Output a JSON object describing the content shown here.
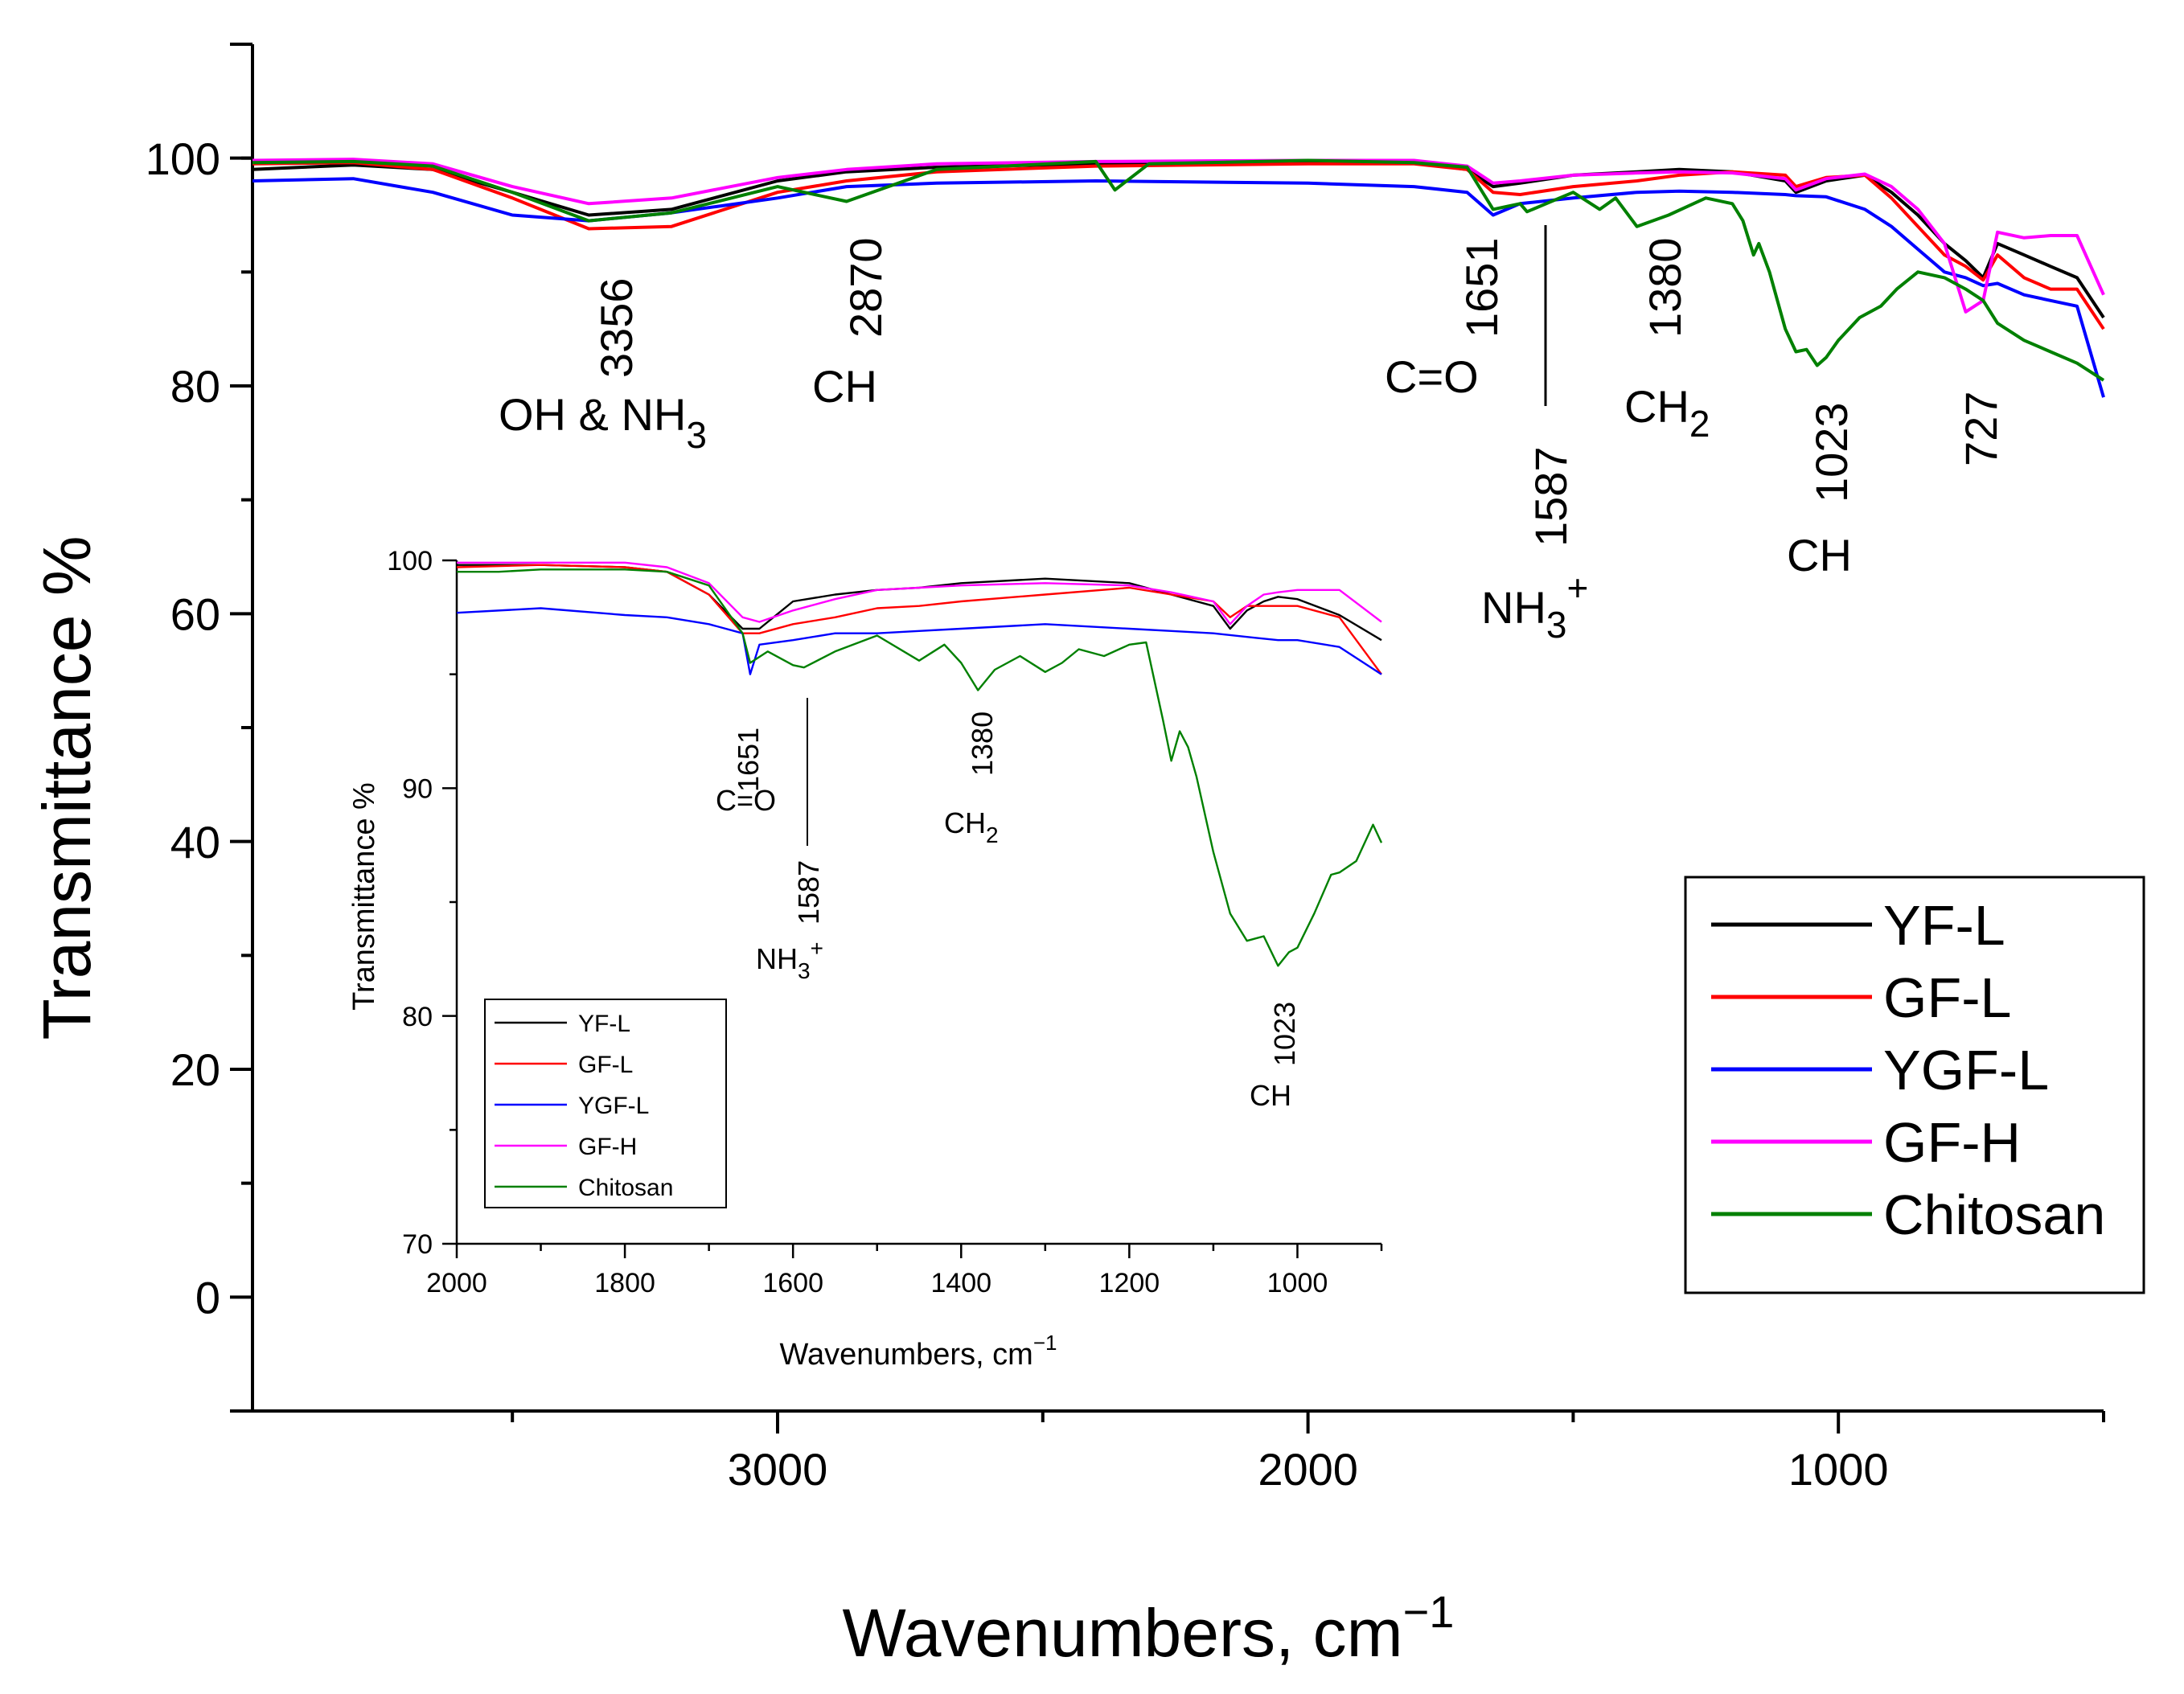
{
  "chart_data": [
    {
      "type": "line",
      "title": "",
      "xlabel": "Wavenumbers, cm",
      "xlabel_sup": "−1",
      "ylabel": "Transmittance %",
      "xlim": [
        3990,
        500
      ],
      "ylim": [
        -10,
        110
      ],
      "xticks": [
        3000,
        2000,
        1000
      ],
      "xtick_labels": [
        "3000",
        "2000",
        "1000"
      ],
      "yticks": [
        0,
        20,
        40,
        60,
        80,
        100
      ],
      "ytick_labels": [
        "0",
        "20",
        "40",
        "60",
        "80",
        "100"
      ],
      "legend": {
        "position": "bottom-right",
        "entries": [
          "YF-L",
          "GF-L",
          "YGF-L",
          "GF-H",
          "Chitosan"
        ]
      },
      "series": [
        {
          "name": "YF-L",
          "color": "#000000",
          "x": [
            3990,
            3800,
            3650,
            3500,
            3356,
            3200,
            3000,
            2870,
            2700,
            2400,
            2000,
            1800,
            1700,
            1651,
            1600,
            1500,
            1380,
            1300,
            1200,
            1100,
            1080,
            1023,
            950,
            900,
            850,
            800,
            760,
            727,
            700,
            650,
            600,
            550,
            500
          ],
          "y": [
            99,
            99.4,
            99,
            97,
            95,
            95.5,
            98,
            98.8,
            99.2,
            99.5,
            99.7,
            99.6,
            99,
            97.5,
            97.8,
            98.5,
            98.8,
            99,
            98.8,
            98,
            97,
            98,
            98.5,
            97,
            95,
            92.5,
            91,
            89.5,
            92.5,
            91.5,
            90.5,
            89.5,
            86
          ]
        },
        {
          "name": "GF-L",
          "color": "#ff0000",
          "x": [
            3990,
            3800,
            3650,
            3500,
            3356,
            3200,
            3000,
            2870,
            2700,
            2400,
            2000,
            1800,
            1700,
            1651,
            1600,
            1500,
            1380,
            1300,
            1200,
            1100,
            1080,
            1023,
            950,
            900,
            850,
            800,
            760,
            727,
            700,
            650,
            600,
            550,
            500
          ],
          "y": [
            99.5,
            99.6,
            99,
            96.5,
            93.8,
            94,
            97,
            98,
            98.8,
            99.3,
            99.5,
            99.5,
            99,
            97,
            96.8,
            97.5,
            98,
            98.5,
            98.8,
            98.5,
            97.5,
            98.3,
            98.5,
            96.5,
            94,
            91.5,
            90.5,
            89.3,
            91.5,
            89.5,
            88.5,
            88.5,
            85
          ]
        },
        {
          "name": "YGF-L",
          "color": "#0000ff",
          "x": [
            3990,
            3800,
            3650,
            3500,
            3356,
            3200,
            3000,
            2870,
            2700,
            2400,
            2000,
            1800,
            1700,
            1651,
            1600,
            1500,
            1380,
            1300,
            1200,
            1100,
            1080,
            1023,
            950,
            900,
            850,
            800,
            760,
            727,
            700,
            650,
            600,
            550,
            500
          ],
          "y": [
            98,
            98.2,
            97,
            95,
            94.5,
            95.2,
            96.5,
            97.5,
            97.8,
            98,
            97.8,
            97.5,
            97,
            95,
            96,
            96.5,
            97,
            97.1,
            97,
            96.8,
            96.7,
            96.6,
            95.5,
            94,
            92,
            90,
            89.5,
            88.8,
            89,
            88,
            87.5,
            87,
            79
          ]
        },
        {
          "name": "GF-H",
          "color": "#ff00ff",
          "x": [
            3990,
            3800,
            3650,
            3500,
            3356,
            3200,
            3000,
            2870,
            2700,
            2400,
            2000,
            1800,
            1700,
            1651,
            1600,
            1500,
            1380,
            1300,
            1200,
            1100,
            1080,
            1023,
            950,
            900,
            850,
            800,
            760,
            727,
            700,
            650,
            600,
            550,
            500
          ],
          "y": [
            99.8,
            99.9,
            99.5,
            97.5,
            96,
            96.5,
            98.3,
            99,
            99.5,
            99.7,
            99.8,
            99.8,
            99.3,
            97.8,
            98,
            98.5,
            98.7,
            98.8,
            98.7,
            98.2,
            97.2,
            98.2,
            98.6,
            97.5,
            95.5,
            92.5,
            86.5,
            87.5,
            93.5,
            93,
            93.2,
            93.2,
            88
          ]
        },
        {
          "name": "Chitosan",
          "color": "#008000",
          "x": [
            3990,
            3800,
            3650,
            3500,
            3356,
            3200,
            3000,
            2870,
            2700,
            2400,
            2364,
            2300,
            2000,
            1800,
            1700,
            1651,
            1600,
            1587,
            1500,
            1450,
            1420,
            1380,
            1320,
            1250,
            1200,
            1180,
            1160,
            1150,
            1130,
            1100,
            1080,
            1060,
            1040,
            1023,
            1000,
            960,
            920,
            890,
            850,
            800,
            760,
            727,
            700,
            650,
            600,
            550,
            500
          ],
          "y": [
            99.6,
            99.7,
            99.3,
            97,
            94.5,
            95.2,
            97.5,
            96.2,
            99,
            99.7,
            97.2,
            99.5,
            99.8,
            99.6,
            99.2,
            95.5,
            96,
            95.3,
            97,
            95.5,
            96.5,
            94,
            95,
            96.5,
            96,
            94.5,
            91.5,
            92.5,
            90,
            85,
            83,
            83.2,
            81.8,
            82.5,
            84,
            86,
            87,
            88.5,
            90,
            89.5,
            88.5,
            87.5,
            85.5,
            84,
            83,
            82,
            80.5
          ]
        }
      ],
      "annotations": [
        {
          "value": "3356",
          "label": "OH & NH",
          "sub": "3"
        },
        {
          "value": "2870",
          "label": "CH"
        },
        {
          "value": "1651",
          "label": "C=O"
        },
        {
          "value": "1587",
          "label": "NH",
          "sub": "3",
          "sup": "+"
        },
        {
          "value": "1380",
          "label": "CH",
          "sub": "2"
        },
        {
          "value": "1023",
          "label": "CH"
        },
        {
          "value": "727"
        }
      ]
    },
    {
      "type": "line",
      "title": "",
      "xlabel": "Wavenumbers, cm",
      "xlabel_sup": "−1",
      "ylabel": "Transmittance %",
      "xlim": [
        2000,
        900
      ],
      "ylim": [
        70,
        100
      ],
      "xticks": [
        2000,
        1800,
        1600,
        1400,
        1200,
        1000
      ],
      "xtick_labels": [
        "2000",
        "1800",
        "1600",
        "1400",
        "1200",
        "1000"
      ],
      "yticks": [
        70,
        80,
        90,
        100
      ],
      "ytick_labels": [
        "70",
        "80",
        "90",
        "100"
      ],
      "legend": {
        "position": "bottom-left",
        "entries": [
          "YF-L",
          "GF-L",
          "YGF-L",
          "GF-H",
          "Chitosan"
        ]
      },
      "series": [
        {
          "name": "YF-L",
          "color": "#000000",
          "x": [
            2000,
            1900,
            1800,
            1750,
            1700,
            1660,
            1640,
            1600,
            1550,
            1500,
            1450,
            1400,
            1300,
            1200,
            1150,
            1100,
            1080,
            1060,
            1040,
            1023,
            1000,
            950,
            900
          ],
          "y": [
            99.8,
            99.8,
            99.7,
            99.5,
            98.5,
            97,
            97,
            98.2,
            98.5,
            98.7,
            98.8,
            99,
            99.2,
            99,
            98.5,
            98,
            97,
            97.8,
            98.2,
            98.4,
            98.3,
            97.6,
            96.5
          ]
        },
        {
          "name": "GF-L",
          "color": "#ff0000",
          "x": [
            2000,
            1900,
            1800,
            1750,
            1700,
            1660,
            1640,
            1600,
            1550,
            1500,
            1450,
            1400,
            1300,
            1200,
            1150,
            1100,
            1080,
            1060,
            1040,
            1023,
            1000,
            950,
            900
          ],
          "y": [
            99.7,
            99.8,
            99.7,
            99.5,
            98.5,
            96.8,
            96.8,
            97.2,
            97.5,
            97.9,
            98,
            98.2,
            98.5,
            98.8,
            98.5,
            98.2,
            97.5,
            98,
            98,
            98,
            98,
            97.5,
            95
          ]
        },
        {
          "name": "YGF-L",
          "color": "#0000ff",
          "x": [
            2000,
            1900,
            1800,
            1750,
            1700,
            1660,
            1651,
            1640,
            1600,
            1550,
            1500,
            1450,
            1400,
            1300,
            1200,
            1150,
            1100,
            1050,
            1023,
            1000,
            950,
            900
          ],
          "y": [
            97.7,
            97.9,
            97.6,
            97.5,
            97.2,
            96.8,
            95,
            96.3,
            96.5,
            96.8,
            96.8,
            96.9,
            97,
            97.2,
            97,
            96.9,
            96.8,
            96.6,
            96.5,
            96.5,
            96.2,
            95
          ]
        },
        {
          "name": "GF-H",
          "color": "#ff00ff",
          "x": [
            2000,
            1900,
            1800,
            1750,
            1700,
            1660,
            1640,
            1600,
            1550,
            1500,
            1450,
            1400,
            1300,
            1200,
            1150,
            1100,
            1080,
            1060,
            1040,
            1023,
            1000,
            950,
            900
          ],
          "y": [
            99.9,
            99.9,
            99.9,
            99.7,
            99,
            97.5,
            97.3,
            97.8,
            98.3,
            98.7,
            98.8,
            98.9,
            99,
            98.9,
            98.6,
            98.2,
            97.2,
            98,
            98.5,
            98.6,
            98.7,
            98.7,
            97.3
          ]
        },
        {
          "name": "Chitosan",
          "color": "#008000",
          "x": [
            2000,
            1950,
            1900,
            1800,
            1750,
            1700,
            1660,
            1651,
            1630,
            1600,
            1587,
            1550,
            1500,
            1450,
            1420,
            1400,
            1380,
            1360,
            1330,
            1300,
            1280,
            1260,
            1230,
            1200,
            1180,
            1160,
            1150,
            1140,
            1130,
            1120,
            1100,
            1080,
            1060,
            1050,
            1040,
            1023,
            1010,
            1000,
            980,
            960,
            950,
            930,
            910,
            900
          ],
          "y": [
            99.5,
            99.5,
            99.6,
            99.6,
            99.5,
            98.9,
            96.8,
            95.5,
            96,
            95.4,
            95.3,
            96,
            96.7,
            95.6,
            96.3,
            95.5,
            94.3,
            95.2,
            95.8,
            95.1,
            95.5,
            96.1,
            95.8,
            96.3,
            96.4,
            93,
            91.2,
            92.5,
            91.8,
            90.5,
            87.2,
            84.5,
            83.3,
            83.4,
            83.5,
            82.2,
            82.8,
            83,
            84.5,
            86.2,
            86.3,
            86.8,
            88.4,
            87.6
          ]
        }
      ],
      "annotations": [
        {
          "value": "1651",
          "label": "C=O"
        },
        {
          "value": "1587",
          "label": "NH",
          "sub": "3",
          "sup": "+"
        },
        {
          "value": "1380",
          "label": "CH",
          "sub": "2"
        },
        {
          "value": "1023",
          "label": "CH"
        }
      ]
    }
  ]
}
